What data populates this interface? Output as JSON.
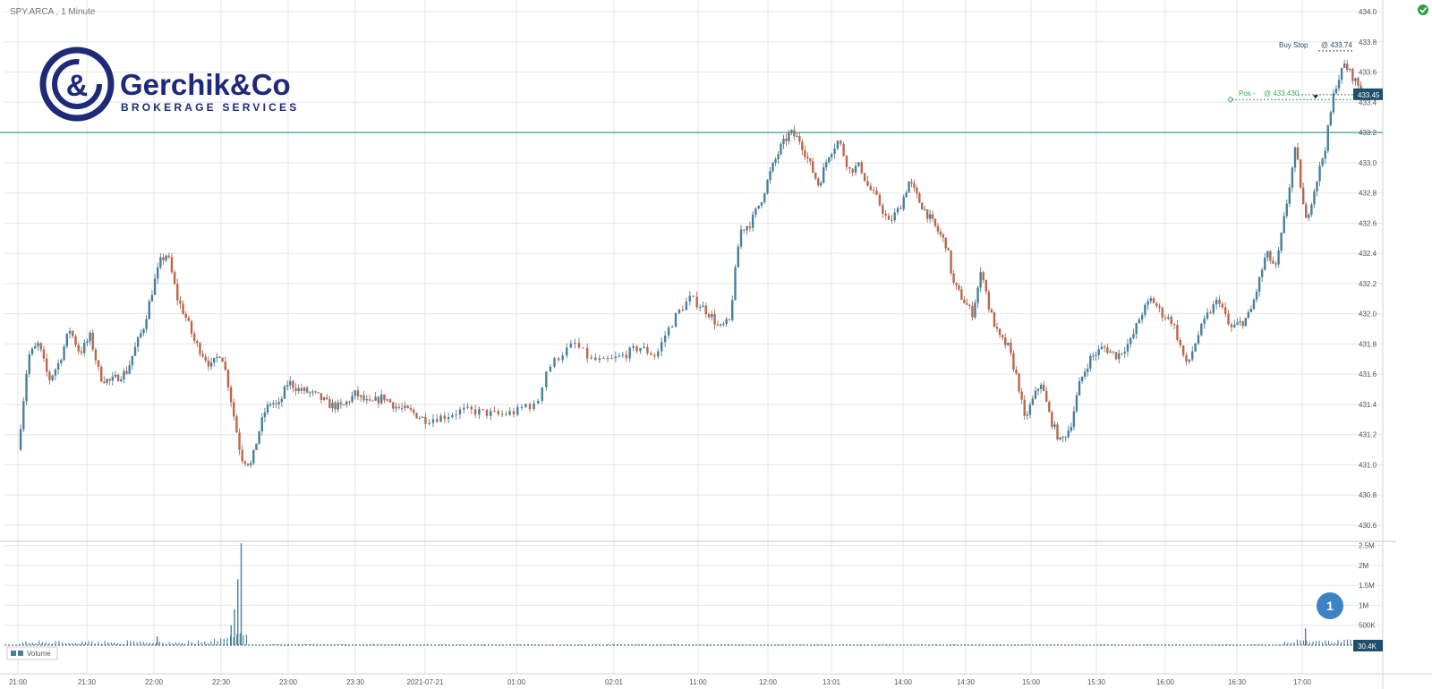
{
  "window": {
    "title": "SPY.ARCA , 1 Minute"
  },
  "logo": {
    "name": "Gerchik&Co",
    "tagline": "BROKERAGE SERVICES"
  },
  "colors": {
    "up": "#4a7f9a",
    "down": "#b8684a",
    "grid": "#e4e6ea",
    "hline": "#3a8a8a",
    "accent": "#1f4f6f",
    "ok": "#2e9c4a",
    "order": "#2a4f6e",
    "position": "#3aa55a"
  },
  "status_icon": "check-circle-icon",
  "chart_data": {
    "type": "candlestick",
    "symbol": "SPY.ARCA",
    "interval": "1 Minute",
    "price_axis": {
      "min": 430.6,
      "max": 434.0,
      "ticks": [
        "434.0",
        "433.8",
        "433.6",
        "433.4",
        "433.2",
        "433.0",
        "432.8",
        "432.6",
        "432.4",
        "432.2",
        "432.0",
        "431.8",
        "431.6",
        "431.4",
        "431.2",
        "431.0",
        "430.8",
        "430.6"
      ]
    },
    "time_axis": {
      "labels": [
        "21:00",
        "21:30",
        "22:00",
        "22:30",
        "23:00",
        "23:30",
        "2021-07-21",
        "01:00",
        "02:01",
        "11:00",
        "12:00",
        "13:01",
        "14:00",
        "14:30",
        "15:00",
        "15:30",
        "16:00",
        "16:30",
        "17:00"
      ]
    },
    "horizontal_line": 433.2,
    "path": [
      [
        0,
        431.1
      ],
      [
        1.5,
        431.72
      ],
      [
        3,
        431.8
      ],
      [
        4.5,
        431.56
      ],
      [
        6,
        431.68
      ],
      [
        7.5,
        431.9
      ],
      [
        9,
        431.74
      ],
      [
        10.5,
        431.85
      ],
      [
        12,
        431.58
      ],
      [
        13.5,
        431.55
      ],
      [
        16,
        431.62
      ],
      [
        17,
        431.75
      ],
      [
        18.5,
        431.92
      ],
      [
        20,
        432.2
      ],
      [
        21,
        432.35
      ],
      [
        22,
        432.4
      ],
      [
        23.5,
        432.1
      ],
      [
        25,
        431.95
      ],
      [
        26,
        431.82
      ],
      [
        27.5,
        431.72
      ],
      [
        28.5,
        431.65
      ],
      [
        30,
        431.75
      ],
      [
        31,
        431.55
      ],
      [
        32,
        431.3
      ],
      [
        33,
        431.05
      ],
      [
        34.5,
        431.0
      ],
      [
        35.5,
        431.2
      ],
      [
        36.5,
        431.35
      ],
      [
        37.5,
        431.42
      ],
      [
        38.5,
        431.38
      ],
      [
        40,
        431.55
      ],
      [
        41.5,
        431.5
      ],
      [
        43,
        431.48
      ],
      [
        44.5,
        431.45
      ],
      [
        46,
        431.4
      ],
      [
        48,
        431.38
      ],
      [
        50,
        431.47
      ],
      [
        52,
        431.4
      ],
      [
        54,
        431.45
      ],
      [
        56,
        431.38
      ],
      [
        58,
        431.35
      ],
      [
        60,
        431.3
      ],
      [
        62,
        431.32
      ],
      [
        64,
        431.36
      ],
      [
        66,
        431.35
      ],
      [
        68,
        431.33
      ],
      [
        70,
        431.35
      ],
      [
        71,
        431.4
      ],
      [
        72,
        431.38
      ],
      [
        73,
        431.62
      ],
      [
        74.5,
        431.73
      ],
      [
        76,
        431.8
      ],
      [
        77.5,
        431.7
      ],
      [
        79,
        431.68
      ],
      [
        81,
        431.72
      ],
      [
        83,
        431.78
      ],
      [
        85,
        431.72
      ],
      [
        86,
        431.85
      ],
      [
        87.5,
        432.0
      ],
      [
        89,
        432.1
      ],
      [
        90.5,
        432.05
      ],
      [
        92,
        431.98
      ],
      [
        93,
        431.9
      ],
      [
        94.5,
        431.95
      ],
      [
        96,
        432.55
      ],
      [
        97.5,
        432.6
      ],
      [
        99,
        432.75
      ],
      [
        100.5,
        432.95
      ],
      [
        102,
        433.1
      ],
      [
        103.5,
        433.2
      ],
      [
        105,
        433.15
      ],
      [
        106.5,
        433.0
      ],
      [
        108,
        432.85
      ],
      [
        109.5,
        433.05
      ],
      [
        111,
        433.15
      ],
      [
        112.5,
        432.95
      ],
      [
        114,
        432.98
      ],
      [
        115,
        432.85
      ],
      [
        116.5,
        432.75
      ],
      [
        118,
        432.6
      ],
      [
        119.5,
        432.7
      ],
      [
        121,
        432.88
      ],
      [
        122.5,
        432.75
      ],
      [
        124,
        432.65
      ],
      [
        125.5,
        432.55
      ],
      [
        127,
        432.45
      ],
      [
        128,
        432.2
      ],
      [
        129.5,
        432.1
      ],
      [
        131,
        432.0
      ],
      [
        132.5,
        432.3
      ],
      [
        133.5,
        432.05
      ],
      [
        135,
        431.85
      ],
      [
        136.5,
        431.78
      ],
      [
        138,
        431.55
      ],
      [
        139,
        431.3
      ],
      [
        140.5,
        431.45
      ],
      [
        141.5,
        431.55
      ],
      [
        143,
        431.3
      ],
      [
        144.5,
        431.15
      ],
      [
        146,
        431.25
      ],
      [
        147.5,
        431.55
      ],
      [
        149,
        431.7
      ],
      [
        151,
        431.78
      ],
      [
        153,
        431.72
      ],
      [
        155,
        431.82
      ],
      [
        156.5,
        432.0
      ],
      [
        158,
        432.1
      ],
      [
        159.5,
        432.0
      ],
      [
        161,
        431.95
      ],
      [
        163,
        431.65
      ],
      [
        164.5,
        431.85
      ],
      [
        166,
        432.0
      ],
      [
        167.5,
        432.1
      ],
      [
        169,
        431.9
      ],
      [
        171,
        431.95
      ],
      [
        172,
        432.0
      ],
      [
        173,
        432.15
      ],
      [
        174.5,
        432.4
      ],
      [
        176,
        432.3
      ],
      [
        177.5,
        432.7
      ],
      [
        179,
        433.1
      ],
      [
        180.5,
        432.6
      ],
      [
        182,
        432.85
      ],
      [
        183.5,
        433.1
      ],
      [
        185,
        433.5
      ],
      [
        186.5,
        433.65
      ],
      [
        188,
        433.55
      ],
      [
        189.5,
        433.45
      ]
    ],
    "volume": {
      "ticks": [
        "2.5M",
        "2M",
        "1.5M",
        "1M",
        "500K"
      ],
      "max": 2600000,
      "current_label": "30.4K",
      "legend": "Volume",
      "spikes": [
        {
          "at": 33,
          "value": 2550000
        },
        {
          "at": 32.5,
          "value": 1650000
        },
        {
          "at": 32,
          "value": 900000
        },
        {
          "at": 31.5,
          "value": 500000
        },
        {
          "at": 20.5,
          "value": 220000
        },
        {
          "at": 180.5,
          "value": 420000
        }
      ]
    },
    "orders": [
      {
        "label": "Buy Stop",
        "price_text": "@ 433.74",
        "price": 433.74
      },
      {
        "label": "Pos -",
        "price_text": "@ 433.430",
        "price": 433.43
      }
    ],
    "last_price_label": "433.45",
    "last_price": 433.45,
    "badge": "1"
  }
}
